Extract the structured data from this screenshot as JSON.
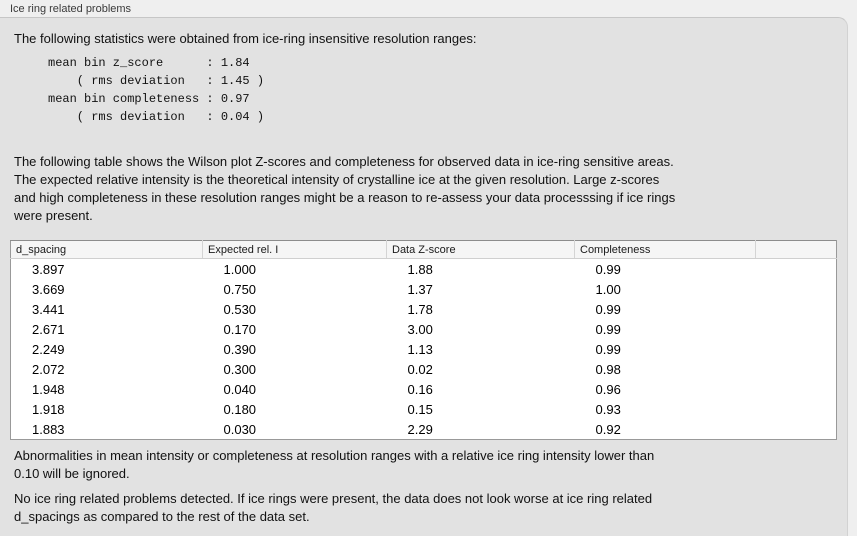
{
  "panel": {
    "title": "Ice ring related problems"
  },
  "intro": "The following statistics were obtained from ice-ring insensitive resolution ranges:",
  "stats_block": "mean bin z_score      : 1.84\n    ( rms deviation   : 1.45 )\nmean bin completeness : 0.97\n    ( rms deviation   : 0.04 )",
  "description": "The following table shows the Wilson plot Z-scores and completeness for observed data in ice-ring sensitive areas.\nThe expected relative intensity is the theoretical intensity of crystalline ice at the given resolution. Large z-scores\nand high completeness in these resolution ranges might be a reason to re-assess your data processsing if ice rings\nwere present.",
  "table": {
    "headers": [
      "d_spacing",
      "Expected rel. I",
      "Data Z-score",
      "Completeness",
      ""
    ],
    "rows": [
      [
        "3.897",
        "1.000",
        "1.88",
        "0.99"
      ],
      [
        "3.669",
        "0.750",
        "1.37",
        "1.00"
      ],
      [
        "3.441",
        "0.530",
        "1.78",
        "0.99"
      ],
      [
        "2.671",
        "0.170",
        "3.00",
        "0.99"
      ],
      [
        "2.249",
        "0.390",
        "1.13",
        "0.99"
      ],
      [
        "2.072",
        "0.300",
        "0.02",
        "0.98"
      ],
      [
        "1.948",
        "0.040",
        "0.16",
        "0.96"
      ],
      [
        "1.918",
        "0.180",
        "0.15",
        "0.93"
      ],
      [
        "1.883",
        "0.030",
        "2.29",
        "0.92"
      ]
    ]
  },
  "note": "Abnormalities in mean intensity or completeness at resolution ranges with a relative ice ring intensity lower than\n0.10 will be ignored.",
  "conclusion": "No ice ring related problems detected. If ice rings were present, the data does not look worse at ice ring related\nd_spacings as compared to the rest of the data set.",
  "colors": {
    "page_bg": "#efefef",
    "panel_bg": "#e2e2e2",
    "table_bg": "#ffffff",
    "table_header_bg": "#f5f5f5",
    "table_border": "#999999",
    "text": "#111111"
  }
}
